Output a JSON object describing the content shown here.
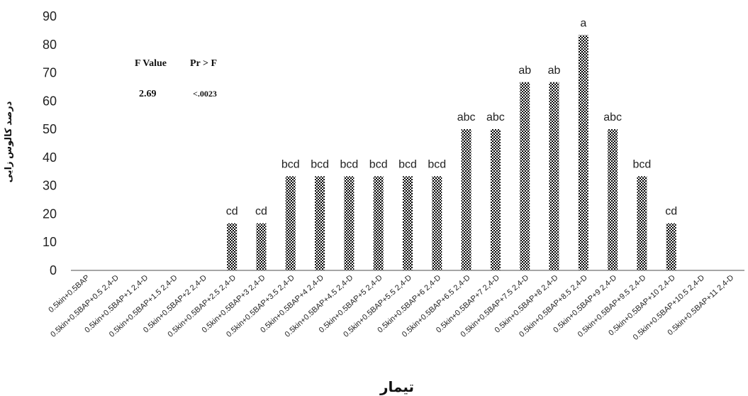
{
  "chart_data": {
    "type": "bar",
    "categories": [
      "0.5kin+0.5BAP",
      "0.5kin+0.5BAP+0.5 2,4-D",
      "0.5kin+0.5BAP+1 2,4-D",
      "0.5kin+0.5BAP+1.5 2,4-D",
      "0.5kin+0.5BAP+2 2,4-D",
      "0.5kin+0.5BAP+2.5 2,4-D",
      "0.5kin+0.5BAP+3 2,4-D",
      "0.5kin+0.5BAP+3.5 2,4-D",
      "0.5kin+0.5BAP+4 2,4-D",
      "0.5kin+0.5BAP+4.5 2,4-D",
      "0.5kin+0.5BAP+5 2,4-D",
      "0.5kin+0.5BAP+5.5 2,4-D",
      "0.5kin+0.5BAP+6 2,4-D",
      "0.5kin+0.5BAP+6.5 2,4-D",
      "0.5kin+0.5BAP+7 2,4-D",
      "0.5kin+0.5BAP+7.5 2,4-D",
      "0.5kin+0.5BAP+8 2,4-D",
      "0.5kin+0.5BAP+8.5 2,4-D",
      "0.5kin+0.5BAP+9 2,4-D",
      "0.5kin+0.5BAP+9.5 2,4-D",
      "0.5kin+0.5BAP+10 2,4-D",
      "0.5kin+0.5BAP+10.5 2,4-D",
      "0.5kin+0.5BAP+11 2,4-D"
    ],
    "values": [
      0,
      0,
      0,
      0,
      0,
      16.67,
      16.67,
      33.33,
      33.33,
      33.33,
      33.33,
      33.33,
      33.33,
      50,
      50,
      66.67,
      66.67,
      83.33,
      50,
      33.33,
      16.67,
      0,
      0
    ],
    "bar_labels": [
      "",
      "",
      "",
      "",
      "",
      "cd",
      "cd",
      "bcd",
      "bcd",
      "bcd",
      "bcd",
      "bcd",
      "bcd",
      "abc",
      "abc",
      "ab",
      "ab",
      "a",
      "abc",
      "bcd",
      "cd",
      "",
      ""
    ],
    "yticks": [
      "0",
      "10",
      "20",
      "30",
      "40",
      "50",
      "60",
      "70",
      "80",
      "90"
    ],
    "ylim": [
      0,
      90
    ],
    "xlabel": "تیمار",
    "ylabel": "درصد کالوس زایی",
    "grid": false,
    "bar_pattern": "checkerboard",
    "bar_color": "#000000",
    "stats": {
      "header_f": "F Value",
      "header_p": "Pr > F",
      "f_value": "2.69",
      "p_value": "<.0023"
    }
  }
}
